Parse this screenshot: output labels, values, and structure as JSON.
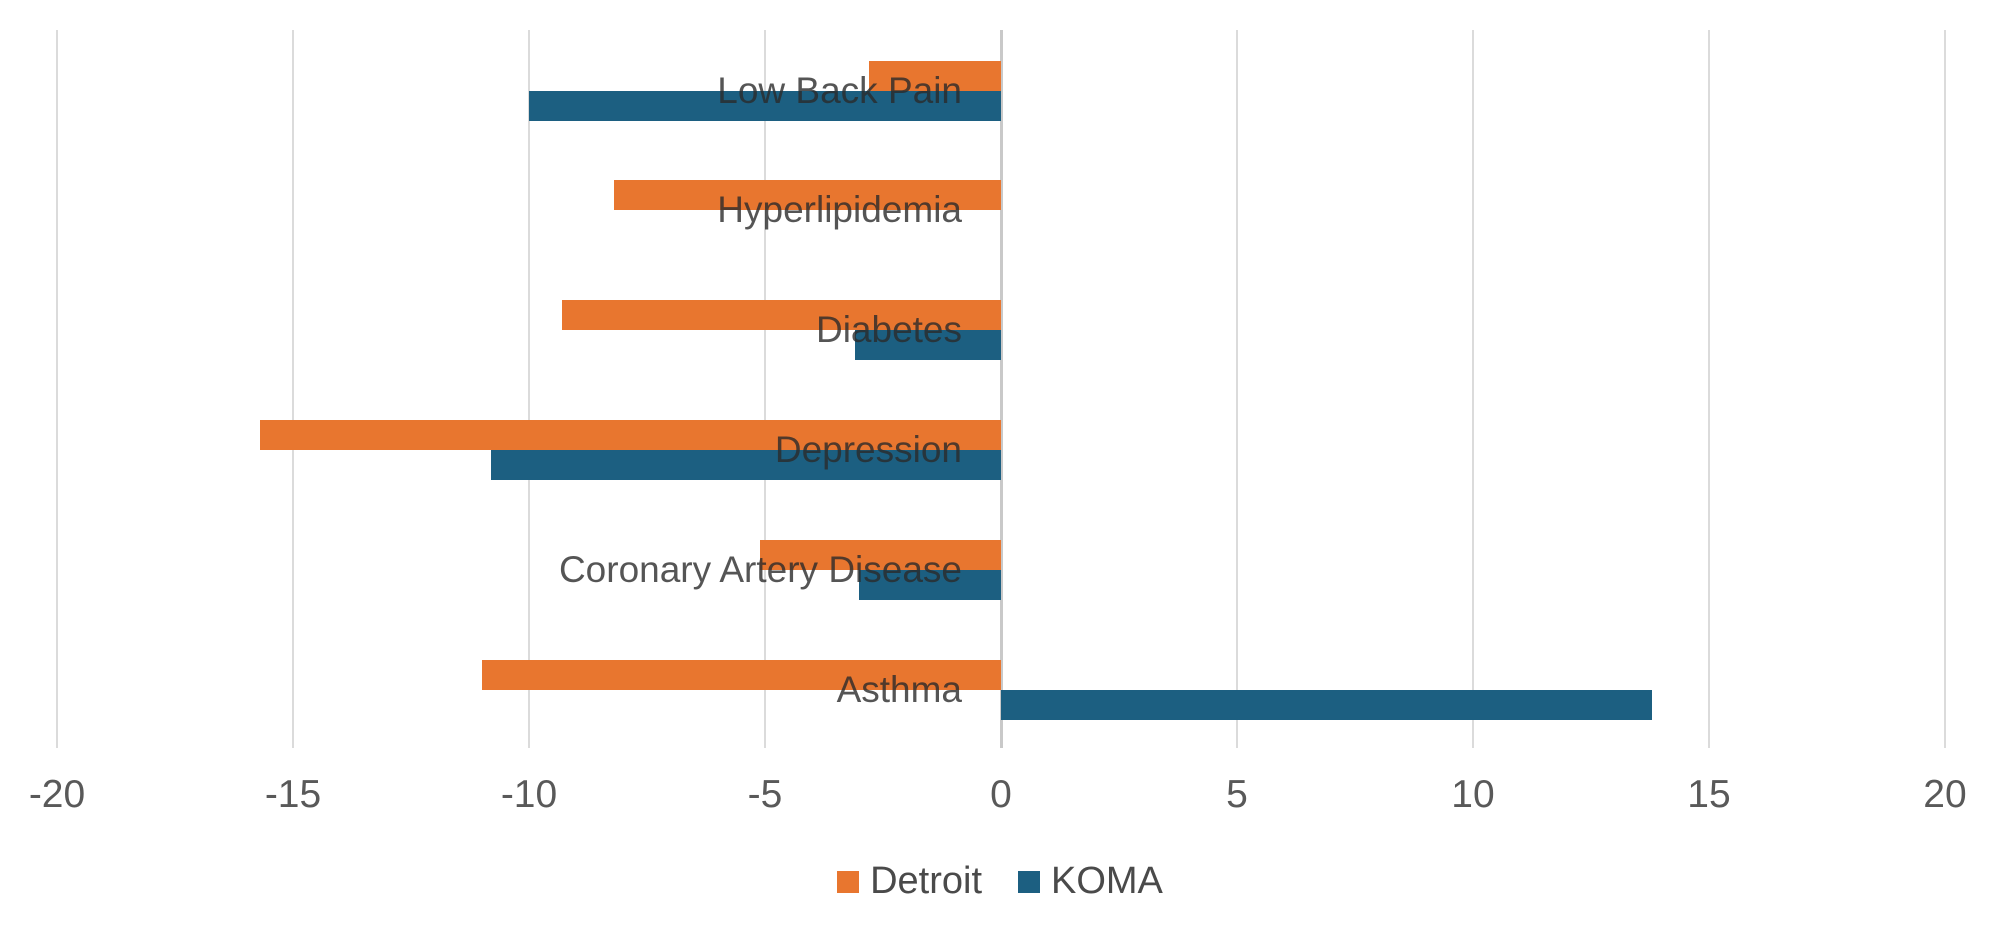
{
  "chart_data": {
    "type": "bar",
    "orientation": "horizontal",
    "title": "",
    "xlabel": "",
    "ylabel": "",
    "categories": [
      "Low Back Pain",
      "Hyperlipidemia",
      "Diabetes",
      "Depression",
      "Coronary Artery Disease",
      "Asthma"
    ],
    "series": [
      {
        "name": "Detroit",
        "color": "#e8762f",
        "values": [
          -2.8,
          -8.2,
          -9.3,
          -15.7,
          -5.1,
          -11.0
        ]
      },
      {
        "name": "KOMA",
        "color": "#1c5f81",
        "values": [
          -10.0,
          0,
          -3.1,
          -10.8,
          -3.0,
          13.8
        ]
      }
    ],
    "xlim": [
      -20,
      20
    ],
    "xticks": [
      -20,
      -15,
      -10,
      -5,
      0,
      5,
      10,
      15,
      20
    ],
    "grid": true,
    "legend_position": "bottom"
  },
  "colors": {
    "gridline": "#dbdbdb",
    "zero_line": "#c9c9c9",
    "axis_text": "#595959",
    "category_text": "#595959",
    "legend_text": "#4a4a4a",
    "background": "#ffffff"
  }
}
